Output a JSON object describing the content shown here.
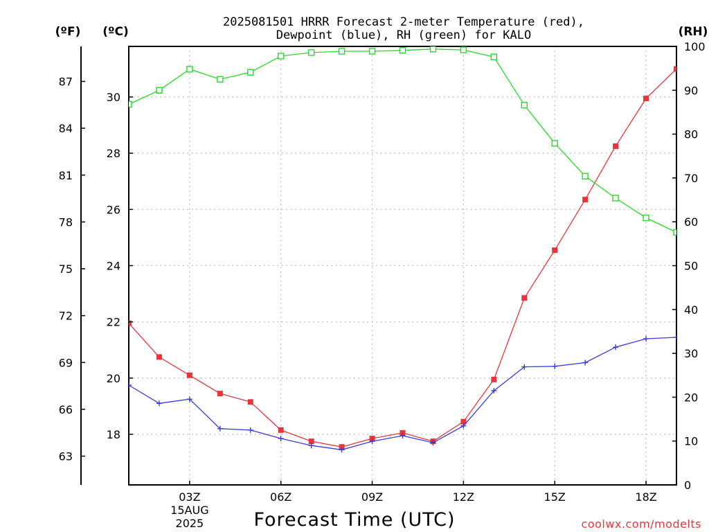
{
  "chart_data": {
    "type": "line",
    "title_lines": [
      "2025081501 HRRR Forecast 2-meter Temperature (red),",
      "Dewpoint (blue), RH (green) for KALO"
    ],
    "xlabel": "Forecast Time (UTC)",
    "x_hours": [
      1,
      2,
      3,
      4,
      5,
      6,
      7,
      8,
      9,
      10,
      11,
      12,
      13,
      14,
      15,
      16,
      17,
      18,
      19
    ],
    "xlim": [
      1,
      19
    ],
    "x_ticks": [
      {
        "hour": 3,
        "lines": [
          "03Z",
          "15AUG",
          "2025"
        ]
      },
      {
        "hour": 6,
        "lines": [
          "06Z"
        ]
      },
      {
        "hour": 9,
        "lines": [
          "09Z"
        ]
      },
      {
        "hour": 12,
        "lines": [
          "12Z"
        ]
      },
      {
        "hour": 15,
        "lines": [
          "15Z"
        ]
      },
      {
        "hour": 18,
        "lines": [
          "18Z"
        ]
      }
    ],
    "left_celsius_axis": {
      "unit_label": "(ºC)",
      "ylim": [
        16.2,
        31.8
      ],
      "ticks": [
        18,
        20,
        22,
        24,
        26,
        28,
        30
      ]
    },
    "left_fahrenheit_axis": {
      "unit_label": "(ºF)",
      "ticks": [
        63,
        66,
        69,
        72,
        75,
        78,
        81,
        84,
        87
      ]
    },
    "right_rh_axis": {
      "unit_label": "(RH)",
      "ylim": [
        0,
        100
      ],
      "ticks": [
        0,
        10,
        20,
        30,
        40,
        50,
        60,
        70,
        80,
        90,
        100
      ]
    },
    "grid": true,
    "series": [
      {
        "name": "Temperature",
        "axis": "celsius",
        "color": "#e8353b",
        "marker": "filled-square",
        "values": [
          21.95,
          20.75,
          20.1,
          19.45,
          19.15,
          18.15,
          17.75,
          17.55,
          17.85,
          18.05,
          17.75,
          18.45,
          19.95,
          22.85,
          24.55,
          26.35,
          28.25,
          29.95,
          31.0
        ]
      },
      {
        "name": "Dewpoint",
        "axis": "celsius",
        "color": "#3a3ae0",
        "marker": "plus",
        "values": [
          19.75,
          19.1,
          19.25,
          18.2,
          18.15,
          17.85,
          17.6,
          17.45,
          17.75,
          17.95,
          17.7,
          18.3,
          19.55,
          20.4,
          20.42,
          20.55,
          21.1,
          21.4,
          21.45
        ]
      },
      {
        "name": "RH",
        "axis": "rh",
        "color": "#22dd22",
        "marker": "open-square",
        "values": [
          86.8,
          90.0,
          94.8,
          92.5,
          94.1,
          97.8,
          98.6,
          98.9,
          98.9,
          99.1,
          99.4,
          99.2,
          97.6,
          86.6,
          77.9,
          70.4,
          65.4,
          60.9,
          57.6
        ]
      }
    ]
  },
  "credit": "coolwx.com/modelts",
  "colors": {
    "temperature": "#e8353b",
    "dewpoint": "#3a3ae0",
    "rh": "#22dd22",
    "credit": "#e8353b"
  }
}
